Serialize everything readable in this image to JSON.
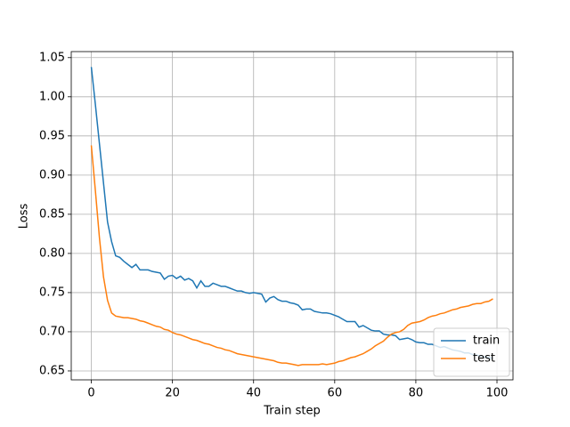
{
  "chart_data": {
    "type": "line",
    "xlabel": "Train step",
    "ylabel": "Loss",
    "x": [
      0,
      1,
      2,
      3,
      4,
      5,
      6,
      7,
      8,
      9,
      10,
      11,
      12,
      13,
      14,
      15,
      16,
      17,
      18,
      19,
      20,
      21,
      22,
      23,
      24,
      25,
      26,
      27,
      28,
      29,
      30,
      31,
      32,
      33,
      34,
      35,
      36,
      37,
      38,
      39,
      40,
      41,
      42,
      43,
      44,
      45,
      46,
      47,
      48,
      49,
      50,
      51,
      52,
      53,
      54,
      55,
      56,
      57,
      58,
      59,
      60,
      61,
      62,
      63,
      64,
      65,
      66,
      67,
      68,
      69,
      70,
      71,
      72,
      73,
      74,
      75,
      76,
      77,
      78,
      79,
      80,
      81,
      82,
      83,
      84,
      85,
      86,
      87,
      88,
      89,
      90,
      91,
      92,
      93,
      94,
      95,
      96,
      97,
      98,
      99
    ],
    "series": [
      {
        "name": "train",
        "color": "#1f77b4",
        "values": [
          1.038,
          0.99,
          0.94,
          0.89,
          0.84,
          0.815,
          0.797,
          0.795,
          0.79,
          0.786,
          0.782,
          0.786,
          0.779,
          0.779,
          0.779,
          0.777,
          0.776,
          0.775,
          0.767,
          0.771,
          0.772,
          0.768,
          0.771,
          0.766,
          0.768,
          0.765,
          0.756,
          0.765,
          0.758,
          0.758,
          0.762,
          0.76,
          0.758,
          0.758,
          0.756,
          0.754,
          0.752,
          0.752,
          0.75,
          0.749,
          0.75,
          0.749,
          0.748,
          0.738,
          0.743,
          0.745,
          0.741,
          0.739,
          0.739,
          0.737,
          0.736,
          0.734,
          0.728,
          0.729,
          0.729,
          0.726,
          0.725,
          0.724,
          0.724,
          0.723,
          0.721,
          0.719,
          0.716,
          0.713,
          0.713,
          0.713,
          0.706,
          0.708,
          0.705,
          0.702,
          0.701,
          0.701,
          0.697,
          0.696,
          0.696,
          0.695,
          0.69,
          0.691,
          0.692,
          0.69,
          0.687,
          0.686,
          0.686,
          0.684,
          0.684,
          0.682,
          0.68,
          0.681,
          0.679,
          0.677,
          0.676,
          0.675,
          0.673,
          0.673,
          0.671,
          0.67,
          0.669,
          0.668,
          0.667,
          0.666
        ]
      },
      {
        "name": "test",
        "color": "#ff7f0e",
        "values": [
          0.938,
          0.88,
          0.82,
          0.77,
          0.74,
          0.724,
          0.72,
          0.719,
          0.718,
          0.718,
          0.717,
          0.716,
          0.714,
          0.713,
          0.711,
          0.709,
          0.707,
          0.706,
          0.703,
          0.702,
          0.699,
          0.697,
          0.696,
          0.694,
          0.692,
          0.69,
          0.689,
          0.687,
          0.685,
          0.684,
          0.682,
          0.68,
          0.679,
          0.677,
          0.676,
          0.674,
          0.672,
          0.671,
          0.67,
          0.669,
          0.668,
          0.667,
          0.666,
          0.665,
          0.664,
          0.663,
          0.661,
          0.66,
          0.66,
          0.659,
          0.658,
          0.657,
          0.658,
          0.658,
          0.658,
          0.658,
          0.658,
          0.659,
          0.658,
          0.659,
          0.66,
          0.662,
          0.663,
          0.665,
          0.667,
          0.668,
          0.67,
          0.672,
          0.675,
          0.678,
          0.682,
          0.685,
          0.688,
          0.693,
          0.697,
          0.699,
          0.7,
          0.703,
          0.708,
          0.711,
          0.712,
          0.713,
          0.715,
          0.718,
          0.72,
          0.721,
          0.723,
          0.724,
          0.726,
          0.728,
          0.729,
          0.731,
          0.732,
          0.733,
          0.735,
          0.736,
          0.736,
          0.738,
          0.739,
          0.742
        ]
      }
    ],
    "xlim": [
      -4.95,
      103.95
    ],
    "xticks": [
      0,
      20,
      40,
      60,
      80,
      100
    ],
    "ylim": [
      0.6386,
      1.0577
    ],
    "yticks": [
      0.65,
      {
        "value": 0.7,
        "label": "0.70"
      },
      0.75,
      {
        "value": 0.8,
        "label": "0.80"
      },
      0.85,
      {
        "value": 0.9,
        "label": "0.90"
      },
      0.95,
      {
        "value": 1.0,
        "label": "1.00"
      },
      1.05
    ],
    "grid": true,
    "legend": "lower right"
  }
}
